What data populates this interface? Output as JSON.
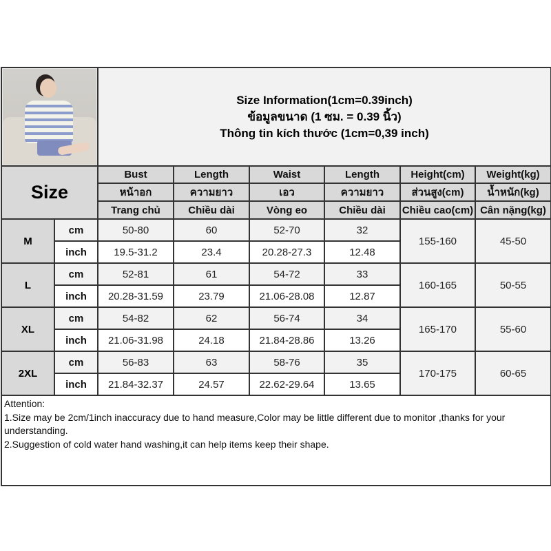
{
  "title": {
    "line1": "Size Information(1cm=0.39inch)",
    "line2": "ข้อมูลขนาด (1 ซม. = 0.39 นิ้ว)",
    "line3": "Thông tin kích thước (1cm=0,39 inch)"
  },
  "size_label": "Size",
  "headers": [
    {
      "en": "Bust",
      "th": "หน้าอก",
      "vi": "Trang chủ"
    },
    {
      "en": "Length",
      "th": "ความยาว",
      "vi": "Chiều dài"
    },
    {
      "en": "Waist",
      "th": "เอว",
      "vi": "Vòng eo"
    },
    {
      "en": "Length",
      "th": "ความยาว",
      "vi": "Chiều dài"
    },
    {
      "en": "Height(cm)",
      "th": "ส่วนสูง(cm)",
      "vi": "Chiều cao(cm)"
    },
    {
      "en": "Weight(kg)",
      "th": "น้ำหนัก(kg)",
      "vi": "Cân nặng(kg)"
    }
  ],
  "units": {
    "cm": "cm",
    "inch": "inch"
  },
  "rows": [
    {
      "size": "M",
      "cm": [
        "50-80",
        "60",
        "52-70",
        "32"
      ],
      "inch": [
        "19.5-31.2",
        "23.4",
        "20.28-27.3",
        "12.48"
      ],
      "height": "155-160",
      "weight": "45-50"
    },
    {
      "size": "L",
      "cm": [
        "52-81",
        "61",
        "54-72",
        "33"
      ],
      "inch": [
        "20.28-31.59",
        "23.79",
        "21.06-28.08",
        "12.87"
      ],
      "height": "160-165",
      "weight": "50-55"
    },
    {
      "size": "XL",
      "cm": [
        "54-82",
        "62",
        "56-74",
        "34"
      ],
      "inch": [
        "21.06-31.98",
        "24.18",
        "21.84-28.86",
        "13.26"
      ],
      "height": "165-170",
      "weight": "55-60"
    },
    {
      "size": "2XL",
      "cm": [
        "56-83",
        "63",
        "58-76",
        "35"
      ],
      "inch": [
        "21.84-32.37",
        "24.57",
        "22.62-29.64",
        "13.65"
      ],
      "height": "170-175",
      "weight": "60-65"
    }
  ],
  "attention": {
    "heading": "Attention:",
    "note1": "1.Size may be 2cm/1inch inaccuracy due to hand measure,Color may be little different due to monitor ,thanks for your understanding.",
    "note2": "2.Suggestion of cold water hand washing,it can help items keep their shape."
  },
  "colors": {
    "header_bg": "#d9d9d9",
    "light_bg": "#f2f2f2",
    "border": "#333333"
  }
}
